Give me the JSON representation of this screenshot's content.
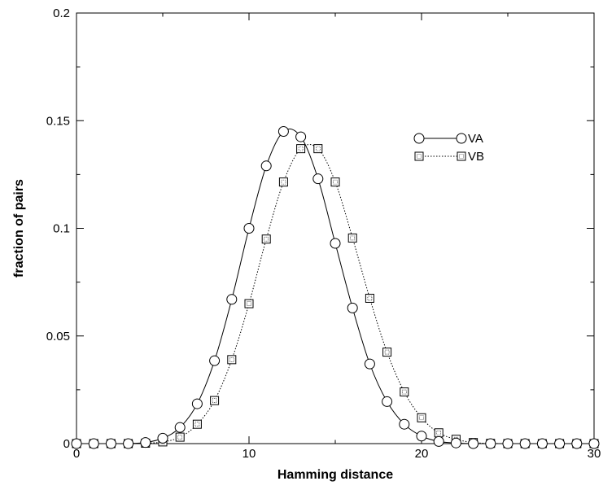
{
  "chart_data": {
    "type": "line",
    "xlabel": "Hamming distance",
    "ylabel": "fraction of pairs",
    "xlim": [
      0,
      30
    ],
    "ylim": [
      0,
      0.2
    ],
    "x_ticks": [
      "0",
      "10",
      "20",
      "30"
    ],
    "y_ticks": [
      "0",
      "0.05",
      "0.1",
      "0.15",
      "0.2"
    ],
    "grid": false,
    "legend_position": "top-right",
    "x": [
      0,
      1,
      2,
      3,
      4,
      5,
      6,
      7,
      8,
      9,
      10,
      11,
      12,
      13,
      14,
      15,
      16,
      17,
      18,
      19,
      20,
      21,
      22,
      23,
      24,
      25,
      26,
      27,
      28,
      29,
      30
    ],
    "series": [
      {
        "name": "VA",
        "marker": "circle",
        "line_style": "solid",
        "values": [
          0,
          0,
          0,
          0,
          0.0005,
          0.0025,
          0.0075,
          0.0185,
          0.0385,
          0.067,
          0.1,
          0.129,
          0.145,
          0.1425,
          0.123,
          0.093,
          0.063,
          0.037,
          0.0195,
          0.009,
          0.0035,
          0.001,
          0.0003,
          0,
          0,
          0,
          0,
          0,
          0,
          0,
          0
        ]
      },
      {
        "name": "VB",
        "marker": "square",
        "line_style": "dotted",
        "values": [
          0,
          0,
          0,
          0,
          0.0002,
          0.0008,
          0.003,
          0.009,
          0.02,
          0.039,
          0.065,
          0.095,
          0.1215,
          0.137,
          0.137,
          0.1215,
          0.0955,
          0.0675,
          0.0425,
          0.024,
          0.012,
          0.005,
          0.002,
          0.0005,
          0.0001,
          0,
          0,
          0,
          0,
          0,
          0
        ]
      }
    ]
  }
}
